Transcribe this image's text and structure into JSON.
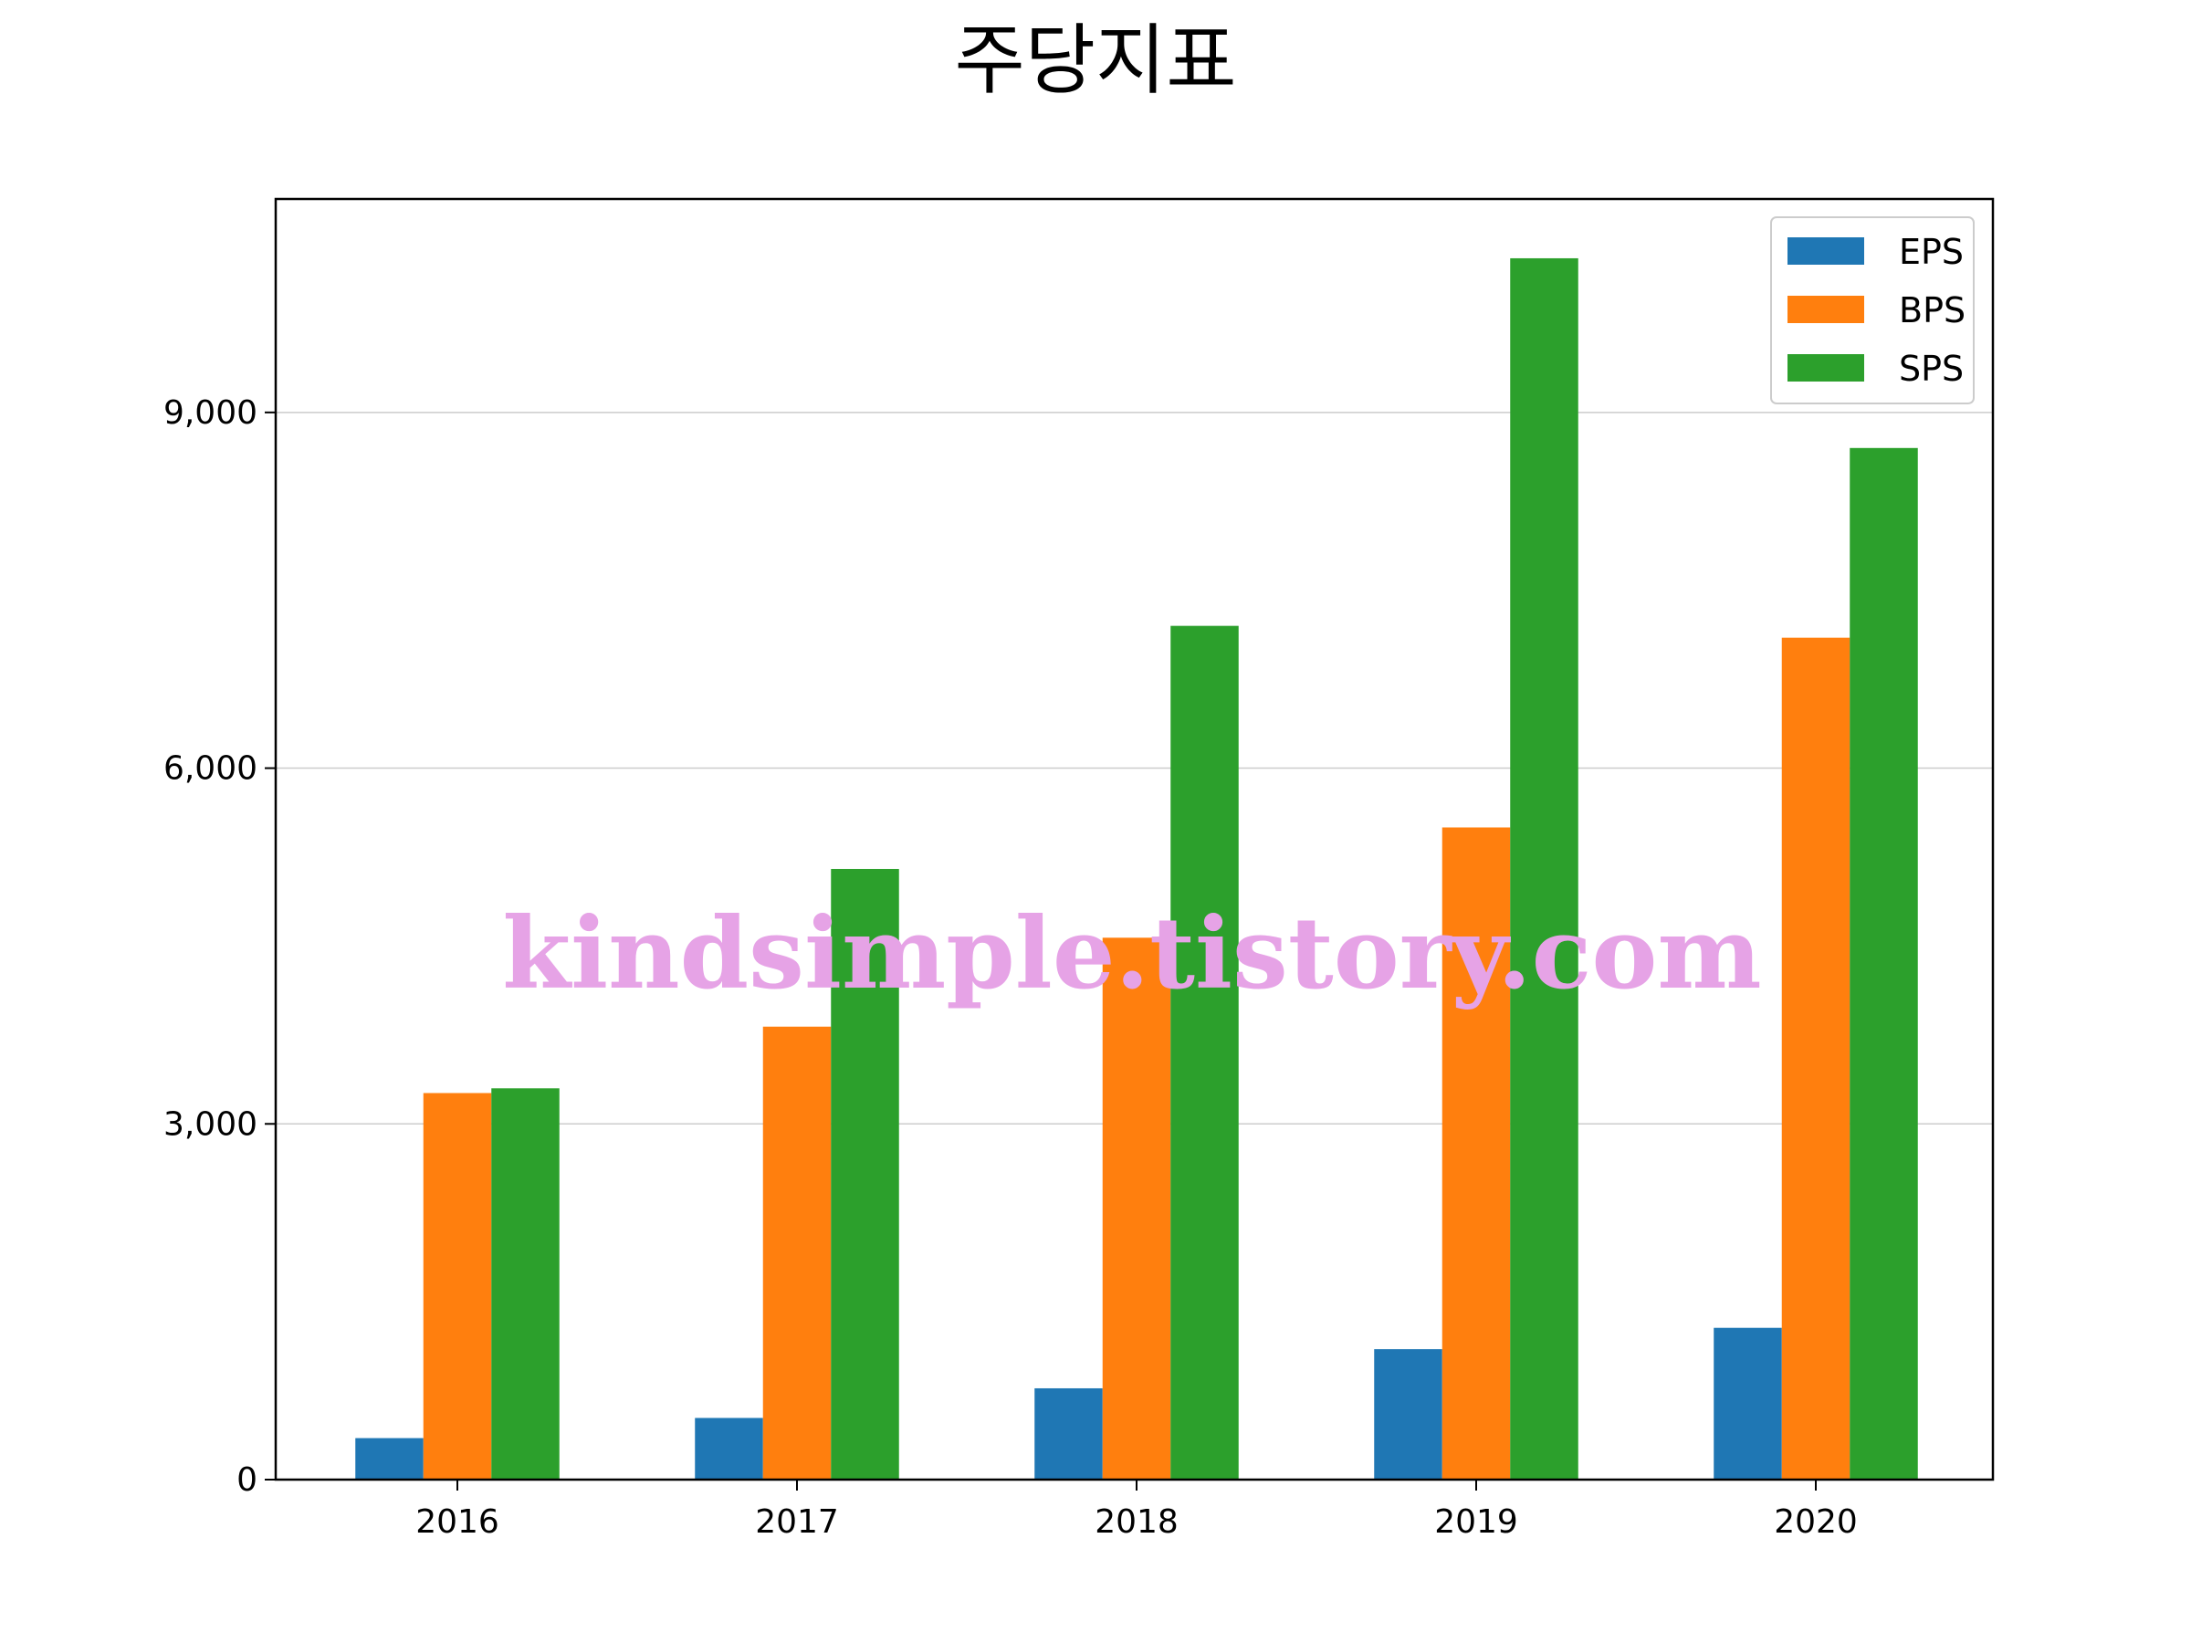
{
  "chart_data": {
    "type": "bar",
    "title": "주당지표",
    "categories": [
      "2016",
      "2017",
      "2018",
      "2019",
      "2020"
    ],
    "series": [
      {
        "name": "EPS",
        "color": "#1f77b4",
        "values": [
          350,
          520,
          770,
          1100,
          1280
        ]
      },
      {
        "name": "BPS",
        "color": "#ff7f0e",
        "values": [
          3260,
          3820,
          4570,
          5500,
          7100
        ]
      },
      {
        "name": "SPS",
        "color": "#2ca02c",
        "values": [
          3300,
          5150,
          7200,
          10300,
          8700
        ]
      }
    ],
    "xlabel": "",
    "ylabel": "",
    "ylim": [
      0,
      10800
    ],
    "yticks": [
      0,
      3000,
      6000,
      9000
    ],
    "ytick_labels": [
      "0",
      "3,000",
      "6,000",
      "9,000"
    ],
    "grid": "horizontal",
    "legend_position": "top-right"
  },
  "watermark": "kindsimple.tistory.com"
}
